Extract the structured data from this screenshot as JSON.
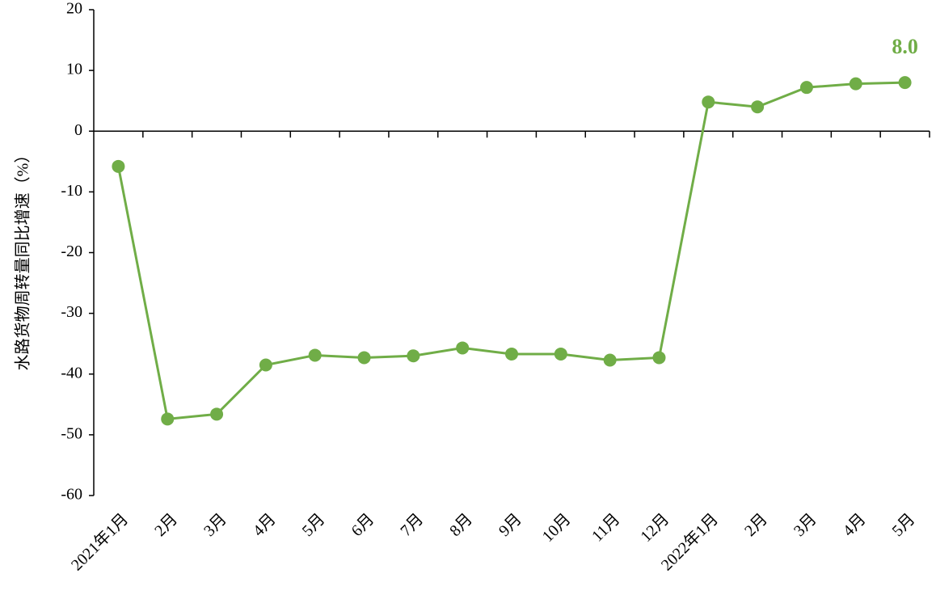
{
  "chart_data": {
    "type": "line",
    "y_label": "水路货物周转量同比增速（%）",
    "categories": [
      "2021年1月",
      "2月",
      "3月",
      "4月",
      "5月",
      "6月",
      "7月",
      "8月",
      "9月",
      "10月",
      "11月",
      "12月",
      "2022年1月",
      "2月",
      "3月",
      "4月",
      "5月"
    ],
    "series": [
      {
        "name": "水路货物周转量同比增速",
        "color": "#70ad47",
        "values": [
          -5.8,
          -47.4,
          -46.6,
          -38.5,
          -36.9,
          -37.3,
          -37.0,
          -35.7,
          -36.7,
          -36.7,
          -37.7,
          -37.3,
          4.8,
          4.0,
          7.2,
          7.8,
          8.0
        ],
        "value_labels": [
          null,
          null,
          null,
          null,
          null,
          null,
          null,
          null,
          null,
          null,
          null,
          null,
          null,
          null,
          null,
          null,
          "8.0"
        ]
      }
    ],
    "ylim": [
      -60,
      20
    ],
    "yticks": [
      20,
      10,
      0,
      -10,
      -20,
      -30,
      -40,
      -50,
      -60
    ]
  }
}
